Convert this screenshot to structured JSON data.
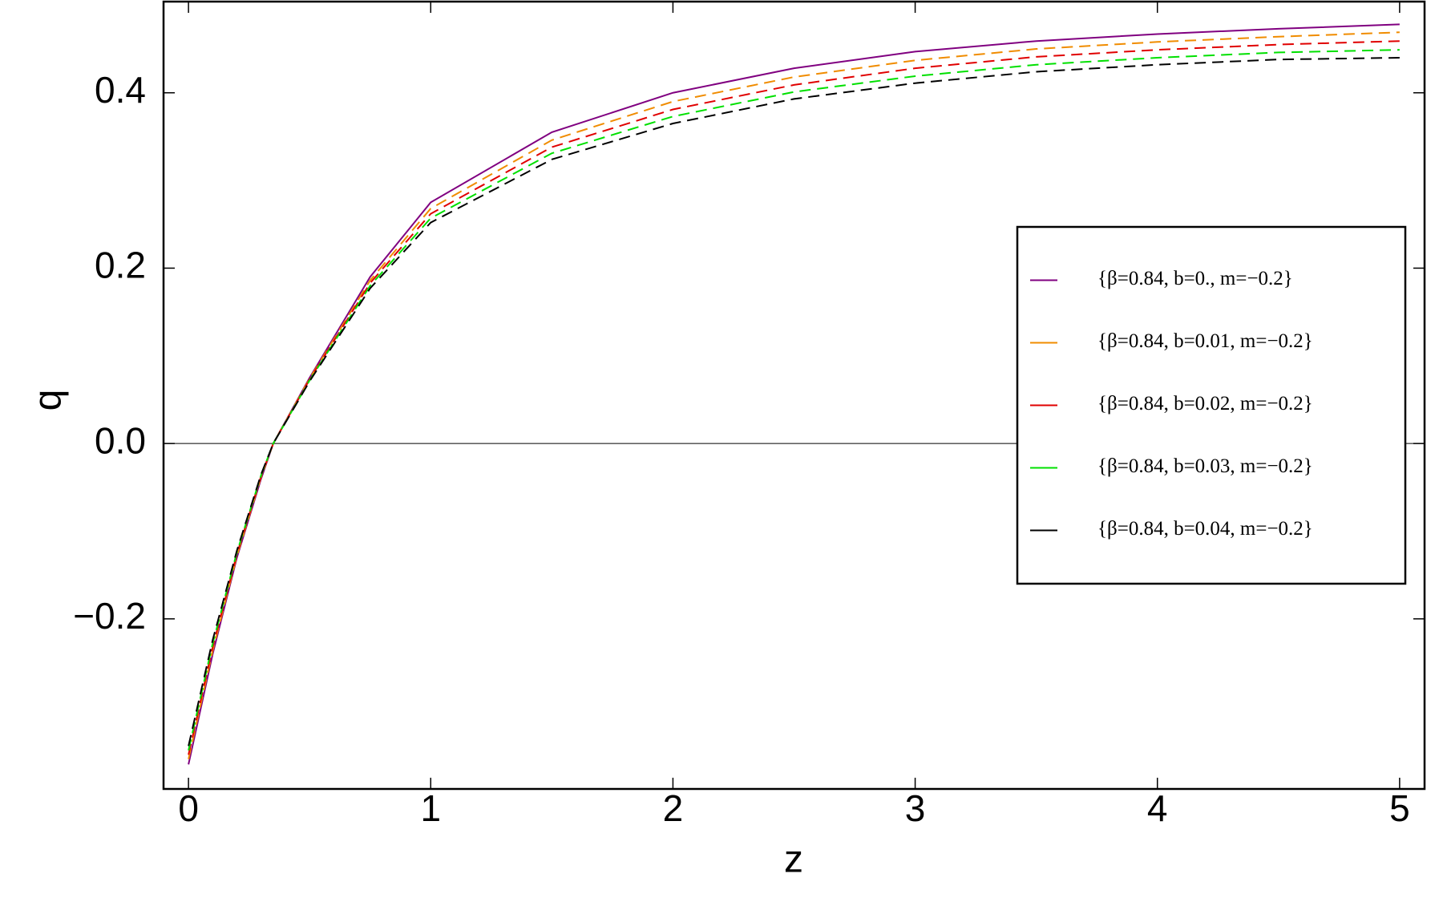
{
  "chart_data": {
    "type": "line",
    "x_label": "z",
    "y_label": "q",
    "x": [
      0,
      0.1,
      0.2,
      0.3,
      0.35,
      0.5,
      0.75,
      1,
      1.5,
      2,
      2.5,
      3,
      3.5,
      4,
      4.5,
      5
    ],
    "series": [
      {
        "name": "{β=0.84, b=0., m=−0.2}",
        "color": "#800080",
        "dashed": false,
        "values": [
          -0.366,
          -0.24,
          -0.13,
          -0.04,
          0.0,
          0.075,
          0.19,
          0.275,
          0.355,
          0.4,
          0.428,
          0.447,
          0.459,
          0.467,
          0.473,
          0.478
        ]
      },
      {
        "name": "{β=0.84, b=0.01, m=−0.2}",
        "color": "#f08c00",
        "dashed": true,
        "values": [
          -0.36,
          -0.236,
          -0.128,
          -0.038,
          0.0,
          0.074,
          0.186,
          0.268,
          0.346,
          0.39,
          0.418,
          0.437,
          0.45,
          0.458,
          0.464,
          0.469
        ]
      },
      {
        "name": "{β=0.84, b=0.02, m=−0.2}",
        "color": "#e00000",
        "dashed": true,
        "values": [
          -0.355,
          -0.232,
          -0.126,
          -0.037,
          0.0,
          0.073,
          0.183,
          0.262,
          0.338,
          0.381,
          0.409,
          0.428,
          0.441,
          0.449,
          0.455,
          0.459
        ]
      },
      {
        "name": "{β=0.84, b=0.03, m=−0.2}",
        "color": "#00e000",
        "dashed": true,
        "values": [
          -0.35,
          -0.228,
          -0.124,
          -0.036,
          0.0,
          0.072,
          0.18,
          0.257,
          0.331,
          0.373,
          0.401,
          0.419,
          0.432,
          0.44,
          0.446,
          0.449
        ]
      },
      {
        "name": "{β=0.84, b=0.04, m=−0.2}",
        "color": "#000000",
        "dashed": true,
        "values": [
          -0.345,
          -0.224,
          -0.122,
          -0.035,
          0.0,
          0.071,
          0.177,
          0.252,
          0.324,
          0.365,
          0.393,
          0.411,
          0.424,
          0.432,
          0.438,
          0.44
        ]
      }
    ],
    "xlim": [
      -0.103,
      5.103
    ],
    "xticks": [
      0,
      1,
      2,
      3,
      4,
      5
    ],
    "ylim": [
      -0.394,
      0.504
    ],
    "yticks": [
      {
        "value": -0.2,
        "label": "−0.2"
      },
      {
        "value": 0,
        "label": "0.0"
      },
      0.2,
      0.4
    ],
    "legend": "center right",
    "grid": false
  }
}
